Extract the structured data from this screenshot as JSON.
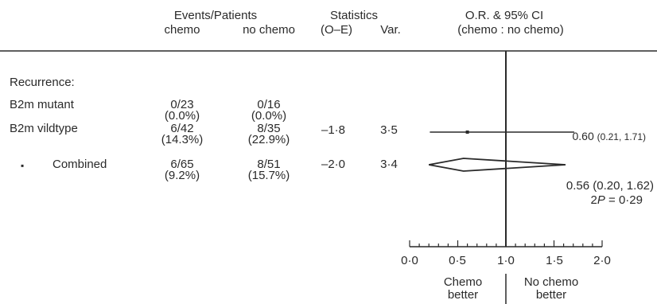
{
  "header": {
    "events_patients": "Events/Patients",
    "chemo": "chemo",
    "no_chemo": "no chemo",
    "statistics": "Statistics",
    "o_e": "(O–E)",
    "var": "Var.",
    "or_ci": "O.R. & 95% CI",
    "chemo_vs": "(chemo : no chemo)"
  },
  "section_label": "Recurrence:",
  "chart_data": {
    "type": "forest",
    "x_axis": {
      "min": 0.0,
      "max": 2.0,
      "ticks": [
        "0·0",
        "0·5",
        "1·0",
        "1·5",
        "2·0"
      ],
      "reference_line": 1.0
    },
    "favours_left": [
      "Chemo",
      "better"
    ],
    "favours_right": [
      "No chemo",
      "better"
    ],
    "rows": [
      {
        "label": "B2m mutant",
        "chemo_events": "0/23",
        "chemo_pct": "(0.0%)",
        "nochemo_events": "0/16",
        "nochemo_pct": "(0.0%)",
        "o_e": "",
        "var": "",
        "or_text": "",
        "kind": "none"
      },
      {
        "label": "B2m vildtype",
        "chemo_events": "6/42",
        "chemo_pct": "(14.3%)",
        "nochemo_events": "8/35",
        "nochemo_pct": "(22.9%)",
        "o_e": "–1·8",
        "var": "3·5",
        "or": 0.6,
        "ci_low": 0.21,
        "ci_high": 1.71,
        "or_prefix": "0.60",
        "or_suffix": "(0.21, 1.71)",
        "kind": "square"
      },
      {
        "label": "Combined",
        "bullet": "▪",
        "chemo_events": "6/65",
        "chemo_pct": "(9.2%)",
        "nochemo_events": "8/51",
        "nochemo_pct": "(15.7%)",
        "o_e": "–2·0",
        "var": "3·4",
        "or": 0.56,
        "ci_low": 0.2,
        "ci_high": 1.62,
        "or_text": "0.56 (0.20, 1.62)",
        "p_label": "2",
        "p_italic": "P",
        "p_value": " = 0·29",
        "kind": "diamond"
      }
    ]
  }
}
